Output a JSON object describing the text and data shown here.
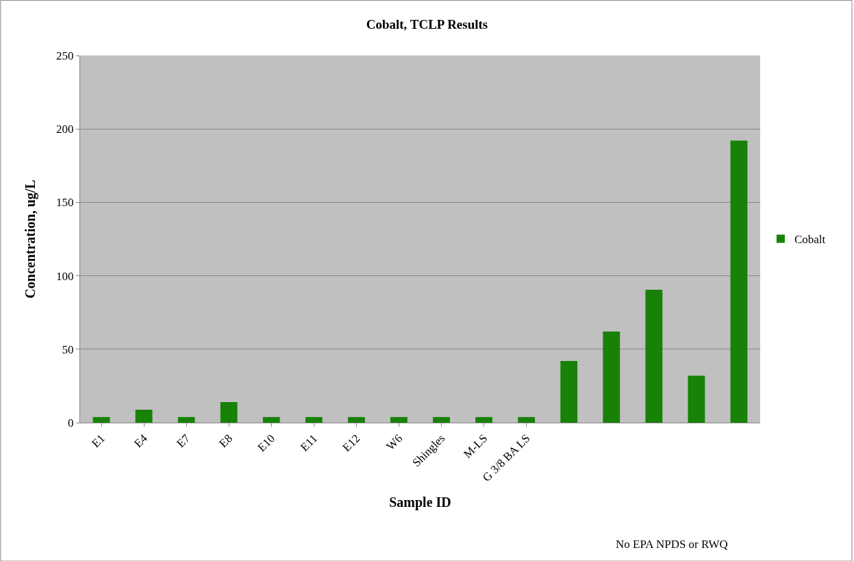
{
  "chart_data": {
    "type": "bar",
    "title": "Cobalt, TCLP Results",
    "xlabel": "Sample ID",
    "ylabel": "Concentration, ug/L",
    "categories": [
      "E1",
      "E4",
      "E7",
      "E8",
      "E10",
      "E11",
      "E12",
      "W6",
      "Shingles",
      "M-LS",
      "G 3/8 BA LS",
      null,
      null,
      null,
      null,
      null
    ],
    "series": [
      {
        "name": "Cobalt",
        "color": "#188107",
        "values": [
          3.8,
          8.8,
          3.8,
          14,
          3.8,
          3.8,
          3.8,
          3.8,
          3.8,
          3.8,
          3.8,
          42,
          62,
          90.5,
          32,
          192
        ]
      }
    ],
    "ylim": [
      0,
      250
    ],
    "yticks": [
      0,
      50,
      100,
      150,
      200,
      250
    ],
    "grid": "y",
    "legend": "right",
    "annotations": [
      "No EPA NPDS or RWQ"
    ]
  }
}
